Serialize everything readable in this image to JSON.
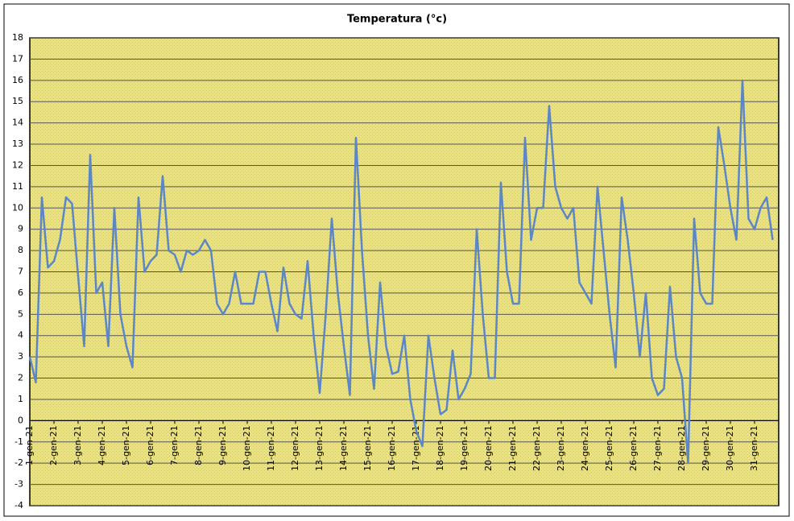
{
  "chart_data": {
    "type": "line",
    "title": "Temperatura (°c)",
    "categories": [
      "1-gen-21",
      null,
      null,
      null,
      "2-gen-21",
      null,
      null,
      null,
      "3-gen-21",
      null,
      null,
      null,
      "4-gen-21",
      null,
      null,
      null,
      "5-gen-21",
      null,
      null,
      null,
      "6-gen-21",
      null,
      null,
      null,
      "7-gen-21",
      null,
      null,
      null,
      "8-gen-21",
      null,
      null,
      null,
      "9-gen-21",
      null,
      null,
      null,
      "10-gen-21",
      null,
      null,
      null,
      "11-gen-21",
      null,
      null,
      null,
      "12-gen-21",
      null,
      null,
      null,
      "13-gen-21",
      null,
      null,
      null,
      "14-gen-21",
      null,
      null,
      null,
      "15-gen-21",
      null,
      null,
      null,
      "16-gen-21",
      null,
      null,
      null,
      "17-gen-21",
      null,
      null,
      null,
      "18-gen-21",
      null,
      null,
      null,
      "19-gen-21",
      null,
      null,
      null,
      "20-gen-21",
      null,
      null,
      null,
      "21-gen-21",
      null,
      null,
      null,
      "22-gen-21",
      null,
      null,
      null,
      "23-gen-21",
      null,
      null,
      null,
      "24-gen-21",
      null,
      null,
      null,
      "25-gen-21",
      null,
      null,
      null,
      "26-gen-21",
      null,
      null,
      null,
      "27-gen-21",
      null,
      null,
      null,
      "28-gen-21",
      null,
      null,
      null,
      "29-gen-21",
      null,
      null,
      null,
      "30-gen-21",
      null,
      null,
      null,
      "31-gen-21",
      null,
      null,
      null
    ],
    "values": [
      3,
      1.8,
      10.5,
      7.2,
      7.5,
      8.5,
      10.5,
      10.2,
      6.8,
      3.5,
      12.5,
      6,
      6.5,
      3.5,
      10,
      5,
      3.5,
      2.5,
      10.5,
      7,
      7.5,
      7.8,
      11.5,
      8,
      7.8,
      7,
      8,
      7.8,
      8,
      8.5,
      8,
      5.5,
      5,
      5.5,
      7,
      5.5,
      5.5,
      5.5,
      7,
      7,
      5.5,
      4.2,
      7.2,
      5.5,
      5,
      4.8,
      7.5,
      4,
      1.3,
      5,
      9.5,
      6,
      3.5,
      1.2,
      13.3,
      8,
      4,
      1.5,
      6.5,
      3.5,
      2.2,
      2.3,
      4,
      1,
      -0.5,
      -1.2,
      4,
      2,
      0.3,
      0.5,
      3.3,
      1,
      1.5,
      2.2,
      9,
      5,
      2,
      2,
      11.2,
      7,
      5.5,
      5.5,
      13.3,
      8.5,
      10,
      10,
      14.8,
      11,
      10,
      9.5,
      10,
      6.5,
      6,
      5.5,
      11,
      8,
      5,
      2.5,
      10.5,
      8.5,
      6,
      3,
      6,
      2,
      1.2,
      1.5,
      6.3,
      3,
      2,
      -2,
      9.5,
      6,
      5.5,
      5.5,
      13.8,
      12,
      10,
      8.5,
      16,
      9.5,
      9,
      10,
      10.5,
      8.5
    ],
    "color": "#5b86c8",
    "ylim": [
      -4,
      18
    ],
    "yticks": [
      -4,
      -3,
      -2,
      -1,
      0,
      1,
      2,
      3,
      4,
      5,
      6,
      7,
      8,
      9,
      10,
      11,
      12,
      13,
      14,
      15,
      16,
      17,
      18
    ],
    "grid": true
  }
}
